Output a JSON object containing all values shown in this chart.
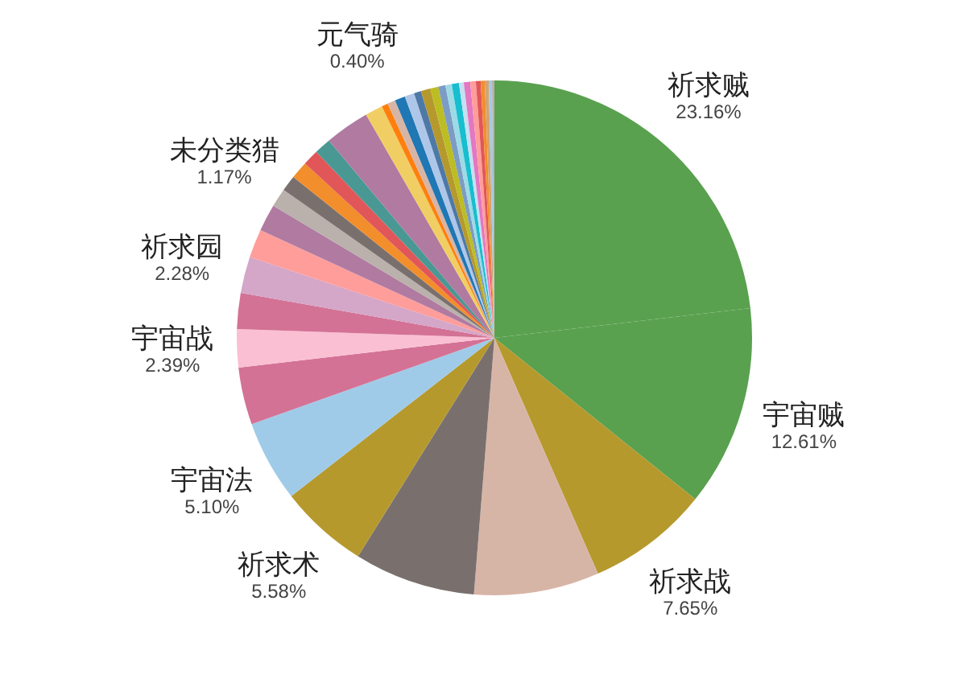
{
  "chart_data": {
    "type": "pie",
    "categories": [
      "祈求贼",
      "宇宙贼",
      "祈求战",
      null,
      null,
      "祈求术",
      "宇宙法",
      null,
      "宇宙战",
      null,
      "祈求园",
      null,
      null,
      "未分类猎",
      null,
      null,
      null,
      null,
      null,
      null,
      "元气骑",
      null,
      null,
      null,
      null,
      null,
      null,
      null,
      null,
      null,
      null,
      null,
      null,
      null,
      null,
      null,
      null,
      null
    ],
    "values": [
      23.16,
      12.61,
      7.65,
      7.85,
      7.61,
      5.58,
      5.1,
      3.6,
      2.39,
      2.25,
      2.28,
      1.8,
      1.7,
      1.17,
      1.0,
      1.1,
      1.0,
      1.05,
      2.8,
      1.1,
      0.4,
      0.5,
      0.65,
      0.6,
      0.45,
      0.6,
      0.5,
      0.45,
      0.4,
      0.45,
      0.3,
      0.4,
      0.35,
      0.3,
      0.25,
      0.25,
      0.2,
      0.15
    ],
    "value_labels": [
      "23.16%",
      "12.61%",
      "7.65%",
      null,
      null,
      "5.58%",
      "5.10%",
      null,
      "2.39%",
      null,
      "2.28%",
      null,
      null,
      "1.17%",
      null,
      null,
      null,
      null,
      null,
      null,
      "0.40%",
      null,
      null,
      null,
      null,
      null,
      null,
      null,
      null,
      null,
      null,
      null,
      null,
      null,
      null,
      null,
      null,
      null
    ],
    "colors": [
      "#59a14f",
      "#59a14f",
      "#b6992d",
      "#d7b5a6",
      "#79706e",
      "#b6992d",
      "#a0cbe8",
      "#d37295",
      "#fabfd2",
      "#d37295",
      "#d4a6c8",
      "#ff9d9a",
      "#b07aa1",
      "#bab0ac",
      "#79706e",
      "#f28e2b",
      "#e15759",
      "#499894",
      "#b07aa1",
      "#f1ce63",
      "#ff7f0e",
      "#d7b5a6",
      "#1f77b4",
      "#aec7e8",
      "#4e79a7",
      "#b6992d",
      "#bcbd22",
      "#7b9cc4",
      "#9edae5",
      "#17becf",
      "#c5e0f0",
      "#e377c2",
      "#ff9d9a",
      "#e15759",
      "#f28e2b",
      "#d4a373",
      "#a0cbe8",
      "#bab0ac"
    ],
    "legend": false
  }
}
